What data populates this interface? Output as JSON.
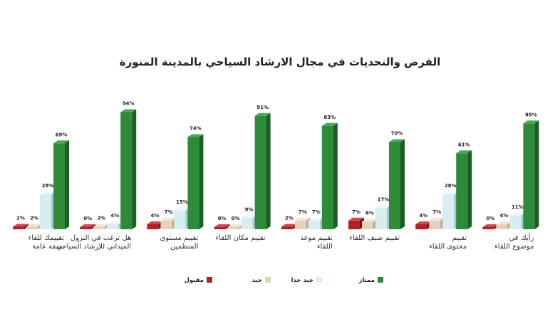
{
  "chart_data": {
    "type": "bar",
    "title": "الفرص والتحديات في مجال الارشاد السياحي بالمدينة المنورة",
    "categories": [
      [
        "تقييمك للقاء",
        "بصفة عامة"
      ],
      [
        "هل ترغب في النزول",
        "الميداني للإرشاد السياحي"
      ],
      [
        "تقييم مستوى",
        "المنظمين"
      ],
      [
        "تقييم مكان اللقاء"
      ],
      [
        "تقييم موعد",
        "اللقاء"
      ],
      [
        "تقييم ضيف اللقاء"
      ],
      [
        "تقييم",
        "محتوى اللقاء"
      ],
      [
        "رأيك في",
        "موضوع اللقاء"
      ]
    ],
    "series": [
      {
        "name": "مقبول",
        "color": "#b51f24",
        "side": "#7a1215",
        "top": "#d2474b",
        "values": [
          2,
          0,
          4,
          0,
          2,
          7,
          4,
          0
        ]
      },
      {
        "name": "جيد",
        "color": "#e5d2bd",
        "side": "#bfa98f",
        "top": "#f1e5d6",
        "values": [
          2,
          2,
          7,
          0,
          7,
          6,
          7,
          4
        ]
      },
      {
        "name": "جيد جدا",
        "color": "#d6eef2",
        "side": "#a7c9d0",
        "top": "#eaf7f9",
        "values": [
          28,
          4,
          15,
          9,
          7,
          17,
          28,
          11
        ]
      },
      {
        "name": "ممتاز",
        "color": "#2e8b3a",
        "side": "#1b5e24",
        "top": "#4aa957",
        "values": [
          69,
          94,
          74,
          91,
          83,
          70,
          61,
          85
        ]
      }
    ],
    "value_suffix": "%",
    "ylim": [
      0,
      100
    ],
    "grid": false,
    "legend_position": "bottom"
  }
}
